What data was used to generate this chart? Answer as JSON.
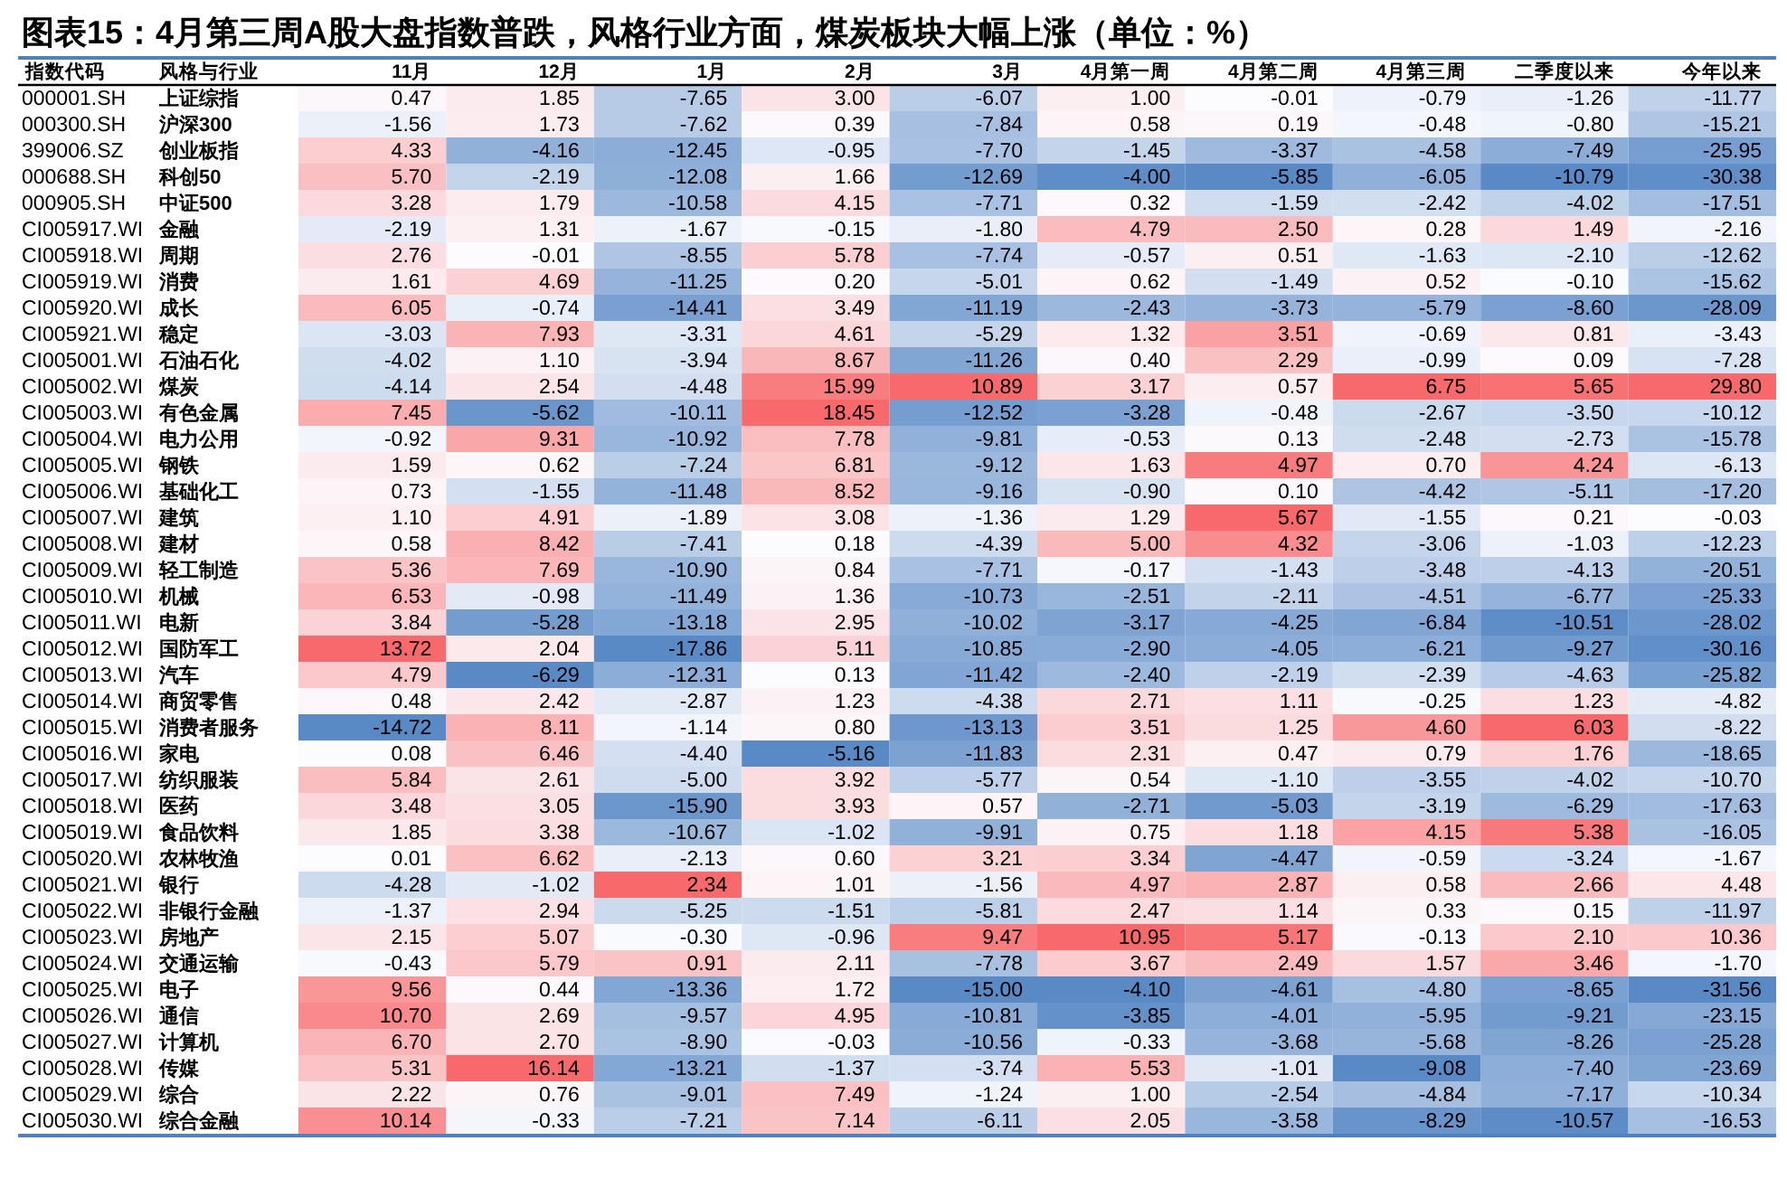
{
  "chart_data": {
    "type": "heatmap",
    "title": "图表15：4月第三周A股大盘指数普跌，风格行业方面，煤炭板块大幅上涨（单位：%）",
    "ylabel": "风格与行业",
    "y2label": "指数代码",
    "categories": [
      "11月",
      "12月",
      "1月",
      "2月",
      "3月",
      "4月第一周",
      "4月第二周",
      "4月第三周",
      "二季度以来",
      "今年以来"
    ],
    "y2_categories": [
      "000001.SH",
      "000300.SH",
      "399006.SZ",
      "000688.SH",
      "000905.SH",
      "CI005917.WI",
      "CI005918.WI",
      "CI005919.WI",
      "CI005920.WI",
      "CI005921.WI",
      "CI005001.WI",
      "CI005002.WI",
      "CI005003.WI",
      "CI005004.WI",
      "CI005005.WI",
      "CI005006.WI",
      "CI005007.WI",
      "CI005008.WI",
      "CI005009.WI",
      "CI005010.WI",
      "CI005011.WI",
      "CI005012.WI",
      "CI005013.WI",
      "CI005014.WI",
      "CI005015.WI",
      "CI005016.WI",
      "CI005017.WI",
      "CI005018.WI",
      "CI005019.WI",
      "CI005020.WI",
      "CI005021.WI",
      "CI005022.WI",
      "CI005023.WI",
      "CI005024.WI",
      "CI005025.WI",
      "CI005026.WI",
      "CI005027.WI",
      "CI005028.WI",
      "CI005029.WI",
      "CI005030.WI"
    ],
    "y_categories": [
      "上证综指",
      "沪深300",
      "创业板指",
      "科创50",
      "中证500",
      "金融",
      "周期",
      "消费",
      "成长",
      "稳定",
      "石油石化",
      "煤炭",
      "有色金属",
      "电力公用",
      "钢铁",
      "基础化工",
      "建筑",
      "建材",
      "轻工制造",
      "机械",
      "电新",
      "国防军工",
      "汽车",
      "商贸零售",
      "消费者服务",
      "家电",
      "纺织服装",
      "医药",
      "食品饮料",
      "农林牧渔",
      "银行",
      "非银行金融",
      "房地产",
      "交通运输",
      "电子",
      "通信",
      "计算机",
      "传媒",
      "综合",
      "综合金融"
    ],
    "cells": [
      [
        0.47,
        1.85,
        -7.65,
        3.0,
        -6.07,
        1.0,
        -0.01,
        -0.79,
        -1.26,
        -11.77
      ],
      [
        -1.56,
        1.73,
        -7.62,
        0.39,
        -7.84,
        0.58,
        0.19,
        -0.48,
        -0.8,
        -15.21
      ],
      [
        4.33,
        -4.16,
        -12.45,
        -0.95,
        -7.7,
        -1.45,
        -3.37,
        -4.58,
        -7.49,
        -25.95
      ],
      [
        5.7,
        -2.19,
        -12.08,
        1.66,
        -12.69,
        -4.0,
        -5.85,
        -6.05,
        -10.79,
        -30.38
      ],
      [
        3.28,
        1.79,
        -10.58,
        4.15,
        -7.71,
        0.32,
        -1.59,
        -2.42,
        -4.02,
        -17.51
      ],
      [
        -2.19,
        1.31,
        -1.67,
        -0.15,
        -1.8,
        4.79,
        2.5,
        0.28,
        1.49,
        -2.16
      ],
      [
        2.76,
        -0.01,
        -8.55,
        5.78,
        -7.74,
        -0.57,
        0.51,
        -1.63,
        -2.1,
        -12.62
      ],
      [
        1.61,
        4.69,
        -11.25,
        0.2,
        -5.01,
        0.62,
        -1.49,
        0.52,
        -0.1,
        -15.62
      ],
      [
        6.05,
        -0.74,
        -14.41,
        3.49,
        -11.19,
        -2.43,
        -3.73,
        -5.79,
        -8.6,
        -28.09
      ],
      [
        -3.03,
        7.93,
        -3.31,
        4.61,
        -5.29,
        1.32,
        3.51,
        -0.69,
        0.81,
        -3.43
      ],
      [
        -4.02,
        1.1,
        -3.94,
        8.67,
        -11.26,
        0.4,
        2.29,
        -0.99,
        0.09,
        -7.28
      ],
      [
        -4.14,
        2.54,
        -4.48,
        15.99,
        10.89,
        3.17,
        0.57,
        6.75,
        5.65,
        29.8
      ],
      [
        7.45,
        -5.62,
        -10.11,
        18.45,
        -12.52,
        -3.28,
        -0.48,
        -2.67,
        -3.5,
        -10.12
      ],
      [
        -0.92,
        9.31,
        -10.92,
        7.78,
        -9.81,
        -0.53,
        0.13,
        -2.48,
        -2.73,
        -15.78
      ],
      [
        1.59,
        0.62,
        -7.24,
        6.81,
        -9.12,
        1.63,
        4.97,
        0.7,
        4.24,
        -6.13
      ],
      [
        0.73,
        -1.55,
        -11.48,
        8.52,
        -9.16,
        -0.9,
        0.1,
        -4.42,
        -5.11,
        -17.2
      ],
      [
        1.1,
        4.91,
        -1.89,
        3.08,
        -1.36,
        1.29,
        5.67,
        -1.55,
        0.21,
        -0.03
      ],
      [
        0.58,
        8.42,
        -7.41,
        0.18,
        -4.39,
        5.0,
        4.32,
        -3.06,
        -1.03,
        -12.23
      ],
      [
        5.36,
        7.69,
        -10.9,
        0.84,
        -7.71,
        -0.17,
        -1.43,
        -3.48,
        -4.13,
        -20.51
      ],
      [
        6.53,
        -0.98,
        -11.49,
        1.36,
        -10.73,
        -2.51,
        -2.11,
        -4.51,
        -6.77,
        -25.33
      ],
      [
        3.84,
        -5.28,
        -13.18,
        2.95,
        -10.02,
        -3.17,
        -4.25,
        -6.84,
        -10.51,
        -28.02
      ],
      [
        13.72,
        2.04,
        -17.86,
        5.11,
        -10.85,
        -2.9,
        -4.05,
        -6.21,
        -9.27,
        -30.16
      ],
      [
        4.79,
        -6.29,
        -12.31,
        0.13,
        -11.42,
        -2.4,
        -2.19,
        -2.39,
        -4.63,
        -25.82
      ],
      [
        0.48,
        2.42,
        -2.87,
        1.23,
        -4.38,
        2.71,
        1.11,
        -0.25,
        1.23,
        -4.82
      ],
      [
        -14.72,
        8.11,
        -1.14,
        0.8,
        -13.13,
        3.51,
        1.25,
        4.6,
        6.03,
        -8.22
      ],
      [
        0.08,
        6.46,
        -4.4,
        -5.16,
        -11.83,
        2.31,
        0.47,
        0.79,
        1.76,
        -18.65
      ],
      [
        5.84,
        2.61,
        -5.0,
        3.92,
        -5.77,
        0.54,
        -1.1,
        -3.55,
        -4.02,
        -10.7
      ],
      [
        3.48,
        3.05,
        -15.9,
        3.93,
        0.57,
        -2.71,
        -5.03,
        -3.19,
        -6.29,
        -17.63
      ],
      [
        1.85,
        3.38,
        -10.67,
        -1.02,
        -9.91,
        0.75,
        1.18,
        4.15,
        5.38,
        -16.05
      ],
      [
        0.01,
        6.62,
        -2.13,
        0.6,
        3.21,
        3.34,
        -4.47,
        -0.59,
        -3.24,
        -1.67
      ],
      [
        -4.28,
        -1.02,
        2.34,
        1.01,
        -1.56,
        4.97,
        2.87,
        0.58,
        2.66,
        4.48
      ],
      [
        -1.37,
        2.94,
        -5.25,
        -1.51,
        -5.81,
        2.47,
        1.14,
        0.33,
        0.15,
        -11.97
      ],
      [
        2.15,
        5.07,
        -0.3,
        -0.96,
        9.47,
        10.95,
        5.17,
        -0.13,
        2.1,
        10.36
      ],
      [
        -0.43,
        5.79,
        0.91,
        2.11,
        -7.78,
        3.67,
        2.49,
        1.57,
        3.46,
        -1.7
      ],
      [
        9.56,
        0.44,
        -13.36,
        1.72,
        -15.0,
        -4.1,
        -4.61,
        -4.8,
        -8.65,
        -31.56
      ],
      [
        10.7,
        2.69,
        -9.57,
        4.95,
        -10.81,
        -3.85,
        -4.01,
        -5.95,
        -9.21,
        -23.15
      ],
      [
        6.7,
        2.7,
        -8.9,
        -0.03,
        -10.56,
        -0.33,
        -3.68,
        -5.68,
        -8.26,
        -25.28
      ],
      [
        5.31,
        16.14,
        -13.21,
        -1.37,
        -3.74,
        5.53,
        -1.01,
        -9.08,
        -7.4,
        -23.69
      ],
      [
        2.22,
        0.76,
        -9.01,
        7.49,
        -1.24,
        1.0,
        -2.54,
        -4.84,
        -7.17,
        -10.34
      ],
      [
        10.14,
        -0.33,
        -7.21,
        7.14,
        -6.11,
        2.05,
        -3.58,
        -8.29,
        -10.57,
        -16.53
      ]
    ],
    "cell_labels": [
      [
        "0.47",
        "1.85",
        "-7.65",
        "3.00",
        "-6.07",
        "1.00",
        "-0.01",
        "-0.79",
        "-1.26",
        "-11.77"
      ],
      [
        "-1.56",
        "1.73",
        "-7.62",
        "0.39",
        "-7.84",
        "0.58",
        "0.19",
        "-0.48",
        "-0.80",
        "-15.21"
      ],
      [
        "4.33",
        "-4.16",
        "-12.45",
        "-0.95",
        "-7.70",
        "-1.45",
        "-3.37",
        "-4.58",
        "-7.49",
        "-25.95"
      ],
      [
        "5.70",
        "-2.19",
        "-12.08",
        "1.66",
        "-12.69",
        "-4.00",
        "-5.85",
        "-6.05",
        "-10.79",
        "-30.38"
      ],
      [
        "3.28",
        "1.79",
        "-10.58",
        "4.15",
        "-7.71",
        "0.32",
        "-1.59",
        "-2.42",
        "-4.02",
        "-17.51"
      ],
      [
        "-2.19",
        "1.31",
        "-1.67",
        "-0.15",
        "-1.80",
        "4.79",
        "2.50",
        "0.28",
        "1.49",
        "-2.16"
      ],
      [
        "2.76",
        "-0.01",
        "-8.55",
        "5.78",
        "-7.74",
        "-0.57",
        "0.51",
        "-1.63",
        "-2.10",
        "-12.62"
      ],
      [
        "1.61",
        "4.69",
        "-11.25",
        "0.20",
        "-5.01",
        "0.62",
        "-1.49",
        "0.52",
        "-0.10",
        "-15.62"
      ],
      [
        "6.05",
        "-0.74",
        "-14.41",
        "3.49",
        "-11.19",
        "-2.43",
        "-3.73",
        "-5.79",
        "-8.60",
        "-28.09"
      ],
      [
        "-3.03",
        "7.93",
        "-3.31",
        "4.61",
        "-5.29",
        "1.32",
        "3.51",
        "-0.69",
        "0.81",
        "-3.43"
      ],
      [
        "-4.02",
        "1.10",
        "-3.94",
        "8.67",
        "-11.26",
        "0.40",
        "2.29",
        "-0.99",
        "0.09",
        "-7.28"
      ],
      [
        "-4.14",
        "2.54",
        "-4.48",
        "15.99",
        "10.89",
        "3.17",
        "0.57",
        "6.75",
        "5.65",
        "29.80"
      ],
      [
        "7.45",
        "-5.62",
        "-10.11",
        "18.45",
        "-12.52",
        "-3.28",
        "-0.48",
        "-2.67",
        "-3.50",
        "-10.12"
      ],
      [
        "-0.92",
        "9.31",
        "-10.92",
        "7.78",
        "-9.81",
        "-0.53",
        "0.13",
        "-2.48",
        "-2.73",
        "-15.78"
      ],
      [
        "1.59",
        "0.62",
        "-7.24",
        "6.81",
        "-9.12",
        "1.63",
        "4.97",
        "0.70",
        "4.24",
        "-6.13"
      ],
      [
        "0.73",
        "-1.55",
        "-11.48",
        "8.52",
        "-9.16",
        "-0.90",
        "0.10",
        "-4.42",
        "-5.11",
        "-17.20"
      ],
      [
        "1.10",
        "4.91",
        "-1.89",
        "3.08",
        "-1.36",
        "1.29",
        "5.67",
        "-1.55",
        "0.21",
        "-0.03"
      ],
      [
        "0.58",
        "8.42",
        "-7.41",
        "0.18",
        "-4.39",
        "5.00",
        "4.32",
        "-3.06",
        "-1.03",
        "-12.23"
      ],
      [
        "5.36",
        "7.69",
        "-10.90",
        "0.84",
        "-7.71",
        "-0.17",
        "-1.43",
        "-3.48",
        "-4.13",
        "-20.51"
      ],
      [
        "6.53",
        "-0.98",
        "-11.49",
        "1.36",
        "-10.73",
        "-2.51",
        "-2.11",
        "-4.51",
        "-6.77",
        "-25.33"
      ],
      [
        "3.84",
        "-5.28",
        "-13.18",
        "2.95",
        "-10.02",
        "-3.17",
        "-4.25",
        "-6.84",
        "-10.51",
        "-28.02"
      ],
      [
        "13.72",
        "2.04",
        "-17.86",
        "5.11",
        "-10.85",
        "-2.90",
        "-4.05",
        "-6.21",
        "-9.27",
        "-30.16"
      ],
      [
        "4.79",
        "-6.29",
        "-12.31",
        "0.13",
        "-11.42",
        "-2.40",
        "-2.19",
        "-2.39",
        "-4.63",
        "-25.82"
      ],
      [
        "0.48",
        "2.42",
        "-2.87",
        "1.23",
        "-4.38",
        "2.71",
        "1.11",
        "-0.25",
        "1.23",
        "-4.82"
      ],
      [
        "-14.72",
        "8.11",
        "-1.14",
        "0.80",
        "-13.13",
        "3.51",
        "1.25",
        "4.60",
        "6.03",
        "-8.22"
      ],
      [
        "0.08",
        "6.46",
        "-4.40",
        "-5.16",
        "-11.83",
        "2.31",
        "0.47",
        "0.79",
        "1.76",
        "-18.65"
      ],
      [
        "5.84",
        "2.61",
        "-5.00",
        "3.92",
        "-5.77",
        "0.54",
        "-1.10",
        "-3.55",
        "-4.02",
        "-10.70"
      ],
      [
        "3.48",
        "3.05",
        "-15.90",
        "3.93",
        "0.57",
        "-2.71",
        "-5.03",
        "-3.19",
        "-6.29",
        "-17.63"
      ],
      [
        "1.85",
        "3.38",
        "-10.67",
        "-1.02",
        "-9.91",
        "0.75",
        "1.18",
        "4.15",
        "5.38",
        "-16.05"
      ],
      [
        "0.01",
        "6.62",
        "-2.13",
        "0.60",
        "3.21",
        "3.34",
        "-4.47",
        "-0.59",
        "-3.24",
        "-1.67"
      ],
      [
        "-4.28",
        "-1.02",
        "2.34",
        "1.01",
        "-1.56",
        "4.97",
        "2.87",
        "0.58",
        "2.66",
        "4.48"
      ],
      [
        "-1.37",
        "2.94",
        "-5.25",
        "-1.51",
        "-5.81",
        "2.47",
        "1.14",
        "0.33",
        "0.15",
        "-11.97"
      ],
      [
        "2.15",
        "5.07",
        "-0.30",
        "-0.96",
        "9.47",
        "10.95",
        "5.17",
        "-0.13",
        "2.10",
        "10.36"
      ],
      [
        "-0.43",
        "5.79",
        "0.91",
        "2.11",
        "-7.78",
        "3.67",
        "2.49",
        "1.57",
        "3.46",
        "-1.70"
      ],
      [
        "9.56",
        "0.44",
        "-13.36",
        "1.72",
        "-15.00",
        "-4.10",
        "-4.61",
        "-4.80",
        "-8.65",
        "-31.56"
      ],
      [
        "10.70",
        "2.69",
        "-9.57",
        "4.95",
        "-10.81",
        "-3.85",
        "-4.01",
        "-5.95",
        "-9.21",
        "-23.15"
      ],
      [
        "6.70",
        "2.70",
        "-8.90",
        "-0.03",
        "-10.56",
        "-0.33",
        "-3.68",
        "-5.68",
        "-8.26",
        "-25.28"
      ],
      [
        "5.31",
        "16.14",
        "-13.21",
        "-1.37",
        "-3.74",
        "5.53",
        "-1.01",
        "-9.08",
        "-7.40",
        "-23.69"
      ],
      [
        "2.22",
        "0.76",
        "-9.01",
        "7.49",
        "-1.24",
        "1.00",
        "-2.54",
        "-4.84",
        "-7.17",
        "-10.34"
      ],
      [
        "10.14",
        "-0.33",
        "-7.21",
        "7.14",
        "-6.11",
        "2.05",
        "-3.58",
        "-8.29",
        "-10.57",
        "-16.53"
      ]
    ],
    "data_labels": true
  }
}
